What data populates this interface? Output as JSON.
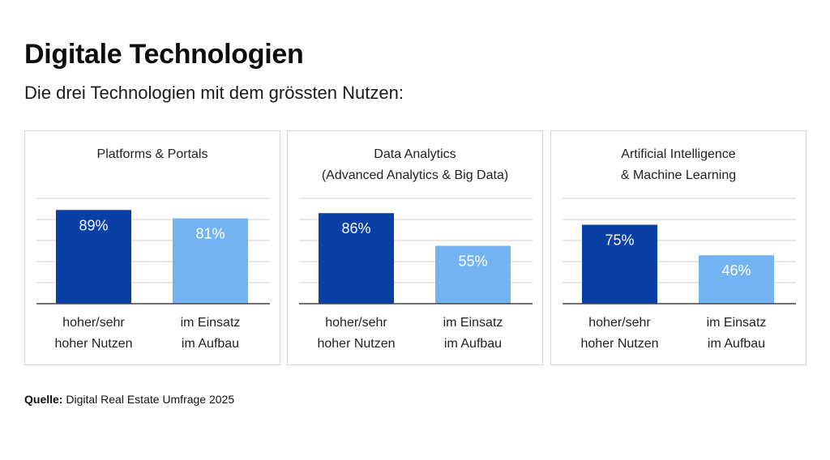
{
  "header": {
    "title": "Digitale Technologien",
    "subtitle": "Die drei Technologien mit dem grössten Nutzen:"
  },
  "source": {
    "label": "Quelle:",
    "text": "Digital Real Estate Umfrage 2025"
  },
  "colors": {
    "dark_bar": "#0a3fa6",
    "light_bar": "#74b3f2",
    "grid": "#cccccc",
    "axis": "#444444"
  },
  "chart_data": [
    {
      "type": "bar",
      "title": [
        "Platforms & Portals"
      ],
      "categories": [
        [
          "hoher/sehr",
          "hoher Nutzen"
        ],
        [
          "im Einsatz",
          "im Aufbau"
        ]
      ],
      "values": [
        89,
        81
      ],
      "labels": [
        "89%",
        "81%"
      ],
      "ylim": [
        0,
        100
      ],
      "grid": true
    },
    {
      "type": "bar",
      "title": [
        "Data Analytics",
        "(Advanced Analytics & Big Data)"
      ],
      "categories": [
        [
          "hoher/sehr",
          "hoher Nutzen"
        ],
        [
          "im Einsatz",
          "im Aufbau"
        ]
      ],
      "values": [
        86,
        55
      ],
      "labels": [
        "86%",
        "55%"
      ],
      "ylim": [
        0,
        100
      ],
      "grid": true
    },
    {
      "type": "bar",
      "title": [
        "Artificial Intelligence",
        "& Machine Learning"
      ],
      "categories": [
        [
          "hoher/sehr",
          "hoher Nutzen"
        ],
        [
          "im Einsatz",
          "im Aufbau"
        ]
      ],
      "values": [
        75,
        46
      ],
      "labels": [
        "75%",
        "46%"
      ],
      "ylim": [
        0,
        100
      ],
      "grid": true
    }
  ]
}
